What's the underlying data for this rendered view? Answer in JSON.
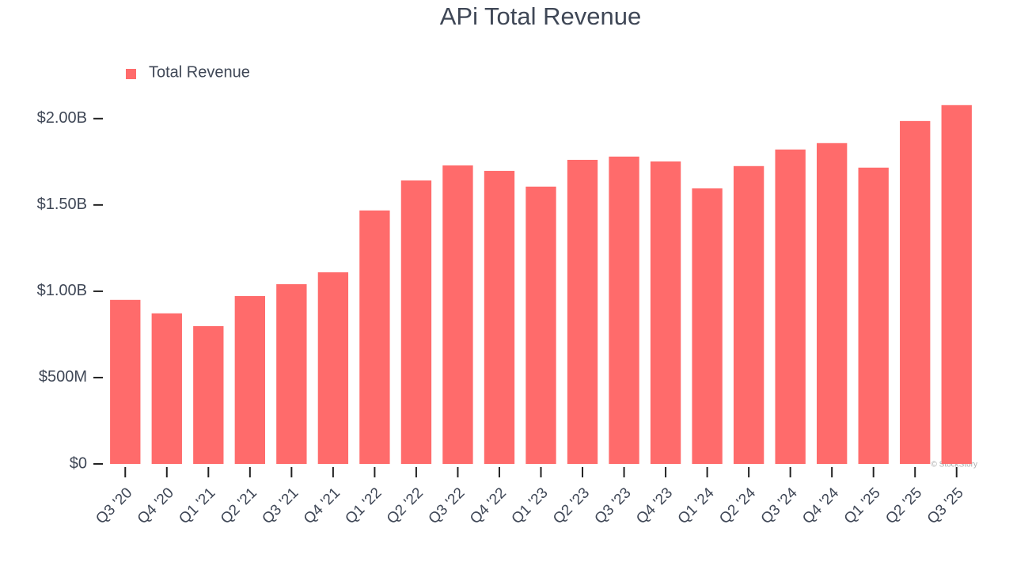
{
  "chart_data": {
    "type": "bar",
    "title": "APi Total Revenue",
    "legend": "top-left",
    "series": [
      {
        "name": "Total Revenue",
        "color": "#ff6b6b",
        "values": [
          950000000,
          872000000,
          798000000,
          972000000,
          1041000000,
          1110000000,
          1468000000,
          1642000000,
          1729000000,
          1697000000,
          1606000000,
          1761000000,
          1780000000,
          1752000000,
          1596000000,
          1725000000,
          1821000000,
          1858000000,
          1716000000,
          1986000000,
          2078000000
        ]
      }
    ],
    "categories": [
      "Q3 '20",
      "Q4 '20",
      "Q1 '21",
      "Q2 '21",
      "Q3 '21",
      "Q4 '21",
      "Q1 '22",
      "Q2 '22",
      "Q3 '22",
      "Q4 '22",
      "Q1 '23",
      "Q2 '23",
      "Q3 '23",
      "Q4 '23",
      "Q1 '24",
      "Q2 '24",
      "Q3 '24",
      "Q4 '24",
      "Q1 '25",
      "Q2 '25",
      "Q3 '25"
    ],
    "ylim": [
      0,
      2100000000
    ],
    "yticks": [
      {
        "value": 0,
        "label": "$0"
      },
      {
        "value": 500000000,
        "label": "$500M"
      },
      {
        "value": 1000000000,
        "label": "$1.00B"
      },
      {
        "value": 1500000000,
        "label": "$1.50B"
      },
      {
        "value": 2000000000,
        "label": "$2.00B"
      }
    ],
    "grid": false,
    "watermark": "© StockStory"
  }
}
